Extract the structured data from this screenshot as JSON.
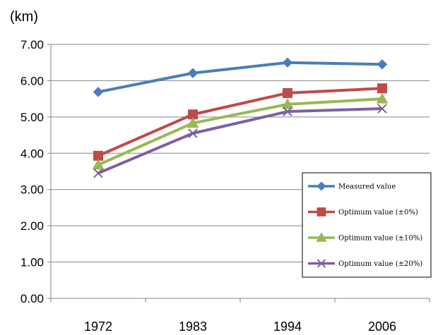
{
  "chart_data": {
    "type": "line",
    "unit_label": "(km)",
    "categories": [
      "1972",
      "1983",
      "1994",
      "2006"
    ],
    "y_ticks": [
      "0.00",
      "1.00",
      "2.00",
      "3.00",
      "4.00",
      "5.00",
      "6.00",
      "7.00"
    ],
    "ylim": [
      0,
      7
    ],
    "grid": true,
    "legend_position": "bottom-right",
    "series": [
      {
        "name": "Measured  value",
        "values": [
          5.69,
          6.21,
          6.5,
          6.45
        ],
        "color": "#4a7ebb",
        "marker": "diamond"
      },
      {
        "name": "Optimum value (±0%)",
        "values": [
          3.93,
          5.07,
          5.66,
          5.79
        ],
        "color": "#be4b48",
        "marker": "square"
      },
      {
        "name": "Optimum value (±10%)",
        "values": [
          3.68,
          4.83,
          5.35,
          5.5
        ],
        "color": "#98b954",
        "marker": "triangle"
      },
      {
        "name": "Optimum value (±20%)",
        "values": [
          3.45,
          4.55,
          5.15,
          5.23
        ],
        "color": "#7d60a0",
        "marker": "x"
      }
    ]
  }
}
